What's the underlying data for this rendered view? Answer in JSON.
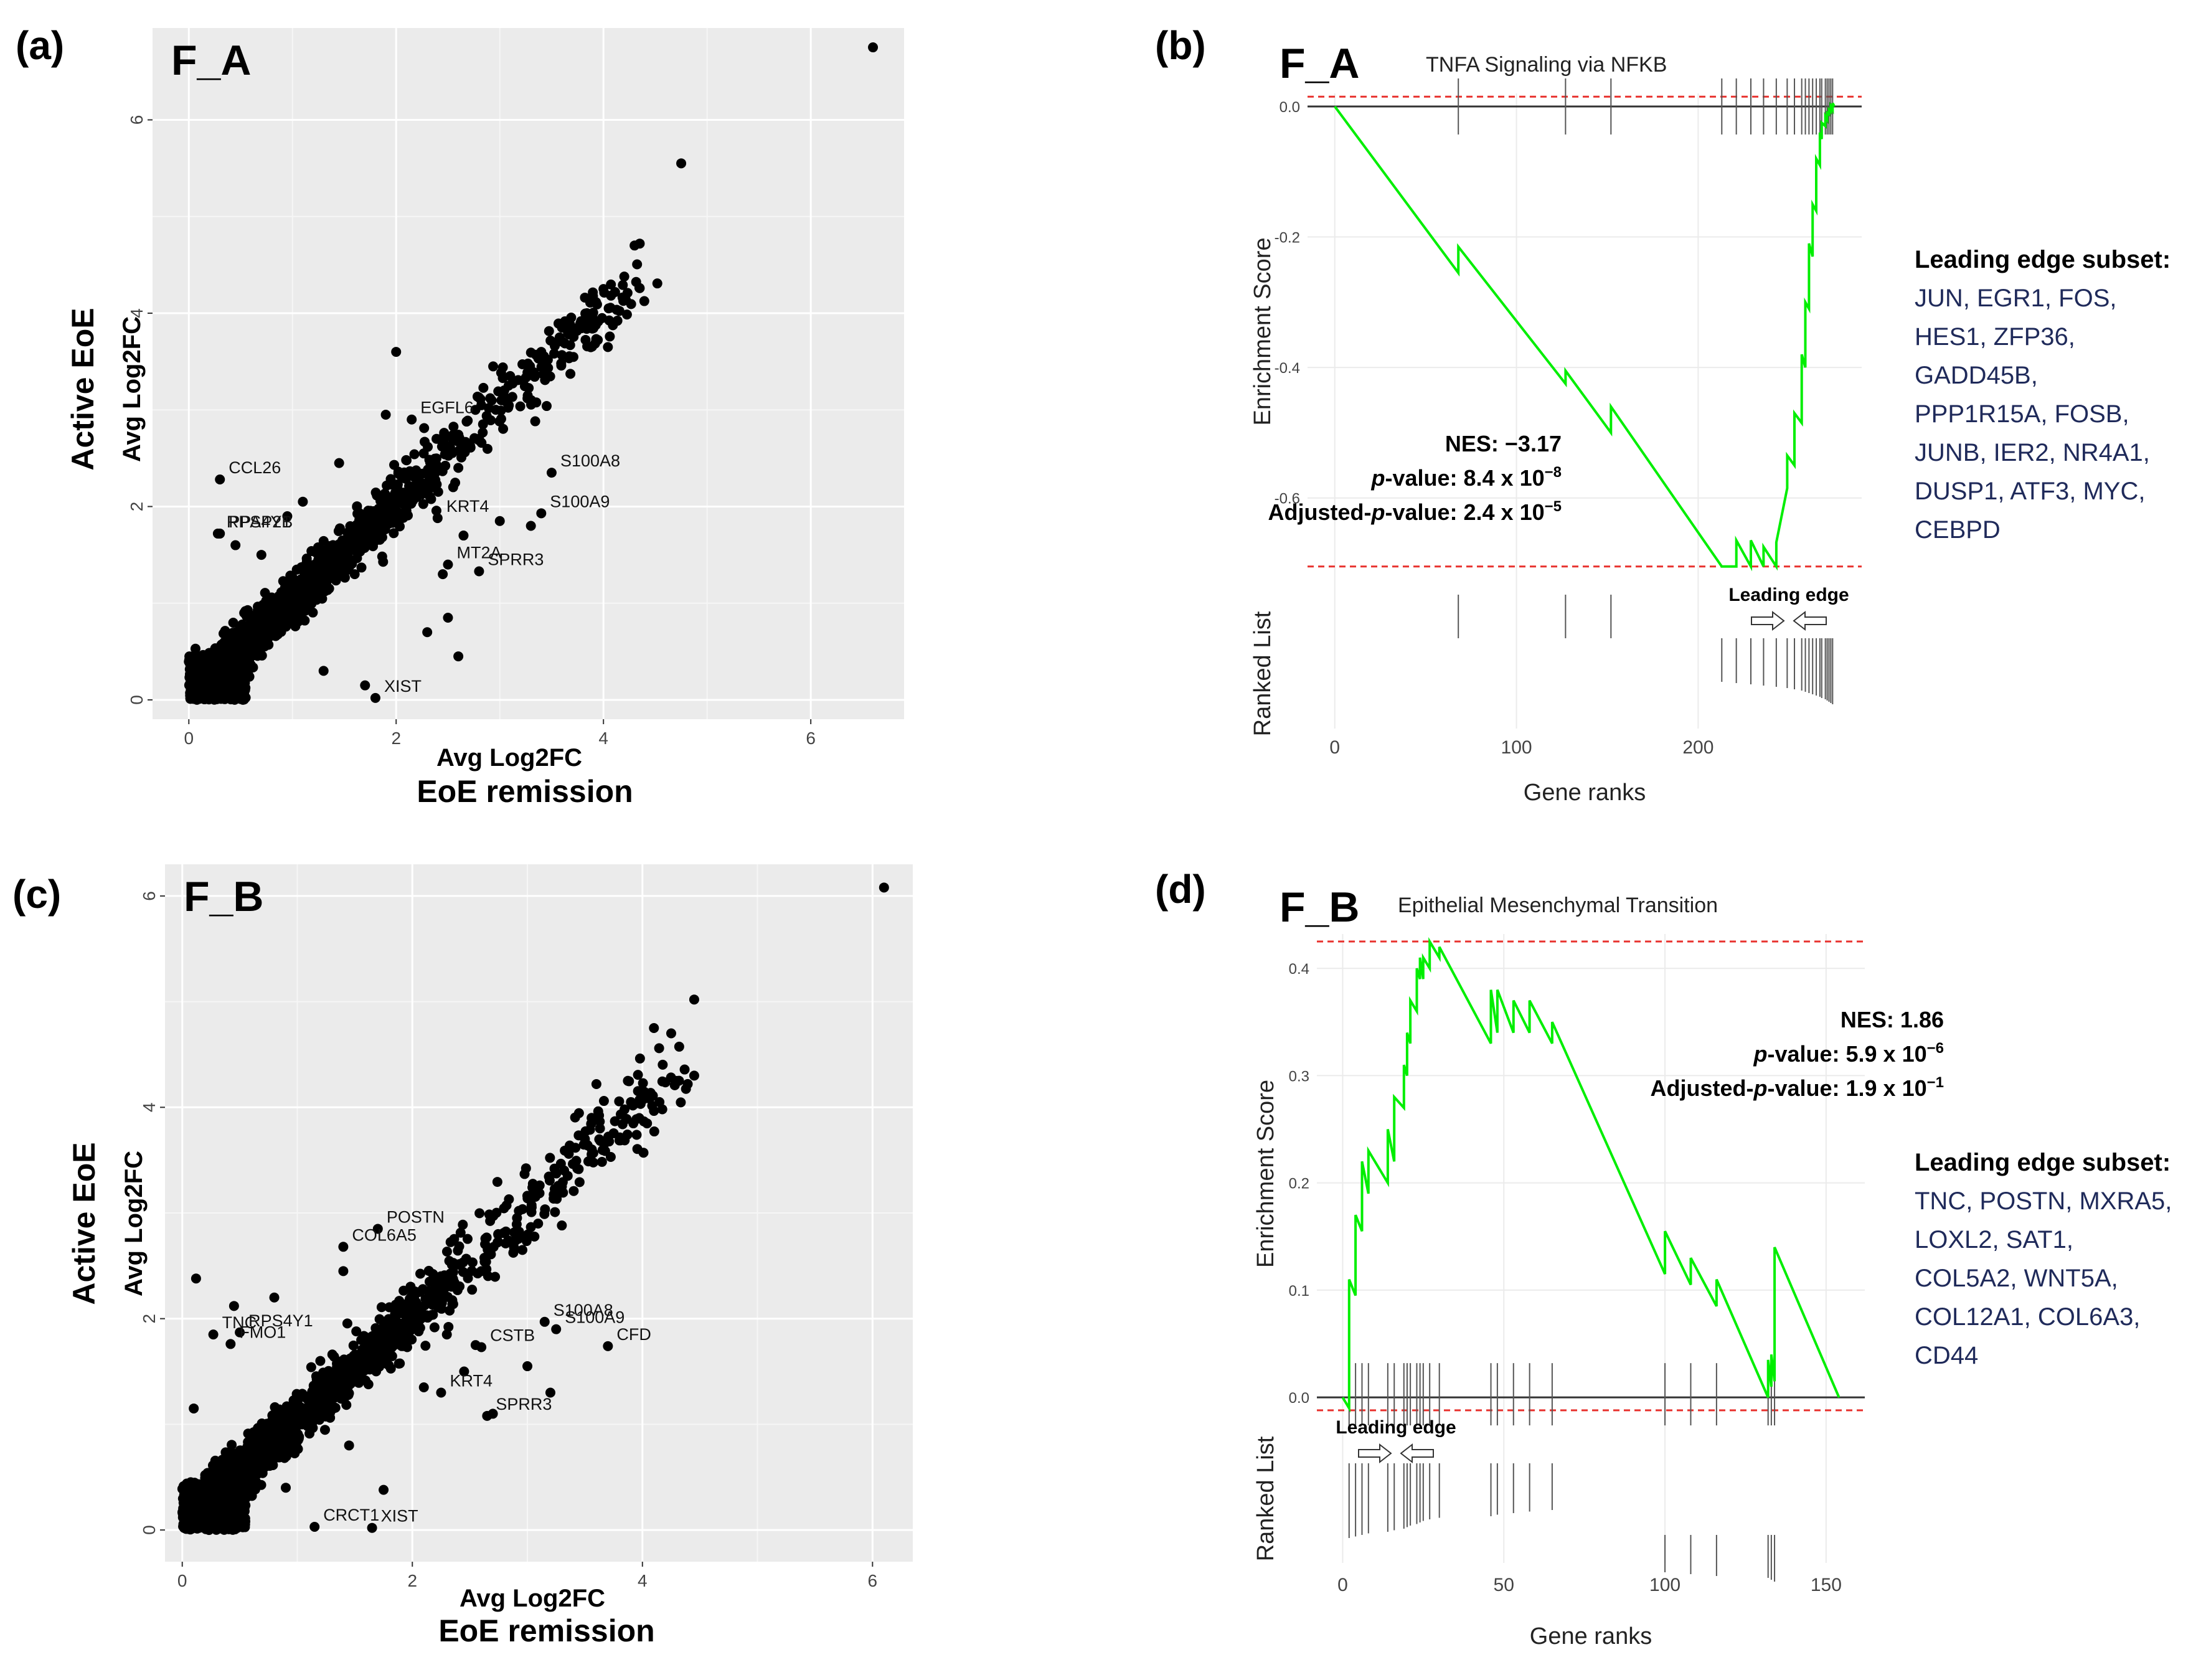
{
  "chart_data": [
    {
      "panel": "(a)",
      "tag": "F_A",
      "type": "scatter",
      "xlabel_top": "Avg Log2FC",
      "xlabel_bottom": "EoE remission",
      "ylabel_top": "Active EoE",
      "ylabel_bottom": "Avg Log2FC",
      "xlim": [
        -0.35,
        6.9
      ],
      "ylim": [
        -0.2,
        6.95
      ],
      "xticks": [
        0,
        2,
        4,
        6
      ],
      "yticks": [
        0,
        2,
        4,
        6
      ],
      "points": [
        [
          6.6,
          6.75
        ],
        [
          4.75,
          5.55
        ],
        [
          4.35,
          4.72
        ],
        [
          4.3,
          4.7
        ],
        [
          4.0,
          4.25
        ],
        [
          4.05,
          4.05
        ],
        [
          3.6,
          3.85
        ],
        [
          3.4,
          3.6
        ],
        [
          3.1,
          3.35
        ],
        [
          2.0,
          3.6
        ],
        [
          1.9,
          2.95
        ],
        [
          1.45,
          2.45
        ],
        [
          2.6,
          2.4
        ],
        [
          2.8,
          2.7
        ],
        [
          2.55,
          2.2
        ],
        [
          2.2,
          2.1
        ],
        [
          3.3,
          1.8
        ],
        [
          3.0,
          1.85
        ],
        [
          2.65,
          1.7
        ],
        [
          2.45,
          1.3
        ],
        [
          2.3,
          0.7
        ],
        [
          2.5,
          0.85
        ],
        [
          2.6,
          0.45
        ],
        [
          1.7,
          0.15
        ],
        [
          0.45,
          1.6
        ],
        [
          0.7,
          1.5
        ],
        [
          0.95,
          1.9
        ],
        [
          1.1,
          2.05
        ],
        [
          1.6,
          1.3
        ],
        [
          1.3,
          0.3
        ]
      ],
      "labeled_points": [
        {
          "name": "CCL26",
          "x": 0.3,
          "y": 2.28
        },
        {
          "name": "RPS4Y1",
          "x": 0.28,
          "y": 1.72
        },
        {
          "name": "PPAP2B",
          "x": 0.3,
          "y": 1.72
        },
        {
          "name": "EGFL6",
          "x": 2.15,
          "y": 2.9
        },
        {
          "name": "S100A8",
          "x": 3.5,
          "y": 2.35
        },
        {
          "name": "S100A9",
          "x": 3.4,
          "y": 1.93
        },
        {
          "name": "KRT4",
          "x": 2.4,
          "y": 1.88
        },
        {
          "name": "MT2A",
          "x": 2.5,
          "y": 1.4
        },
        {
          "name": "SPRR3",
          "x": 2.8,
          "y": 1.33
        },
        {
          "name": "XIST",
          "x": 1.8,
          "y": 0.02
        }
      ]
    },
    {
      "panel": "(b)",
      "tag": "F_A",
      "type": "line",
      "title": "TNFA Signaling via NFKB",
      "xlabel": "Gene ranks",
      "ylabel": "Enrichment Score",
      "ranked_list_label": "Ranked List",
      "xlim": [
        -15,
        290
      ],
      "ylim": [
        -0.71,
        0.02
      ],
      "xticks": [
        0,
        100,
        200
      ],
      "yticks": [
        0.0,
        -0.2,
        -0.4,
        -0.6
      ],
      "dashed_lines": [
        0.015,
        -0.705
      ],
      "x": [
        0,
        68,
        68,
        127,
        127,
        152,
        152,
        213,
        221,
        221,
        229,
        229,
        236,
        236,
        243,
        243,
        249,
        249,
        253,
        253,
        257,
        257,
        259,
        259,
        261,
        261,
        263,
        263,
        265,
        265,
        267,
        267,
        268,
        268,
        270,
        270,
        271,
        271,
        272,
        272,
        273,
        273,
        274,
        274,
        275
      ],
      "y": [
        0.0,
        -0.255,
        -0.215,
        -0.425,
        -0.405,
        -0.5,
        -0.46,
        -0.705,
        -0.705,
        -0.665,
        -0.705,
        -0.665,
        -0.705,
        -0.675,
        -0.705,
        -0.668,
        -0.585,
        -0.535,
        -0.55,
        -0.47,
        -0.485,
        -0.38,
        -0.4,
        -0.3,
        -0.31,
        -0.21,
        -0.23,
        -0.15,
        -0.16,
        -0.08,
        -0.09,
        -0.04,
        -0.05,
        -0.025,
        -0.03,
        -0.015,
        -0.02,
        -0.01,
        -0.012,
        -0.005,
        -0.008,
        0.0,
        -0.005,
        0.005,
        0.0
      ],
      "hits_upper": [
        68,
        127,
        152,
        213,
        221,
        229,
        236,
        243,
        249,
        253,
        257,
        259,
        261,
        263,
        265,
        267,
        268,
        270,
        271,
        272,
        273,
        274
      ],
      "hits_lower": [
        68,
        127,
        152
      ],
      "hits_lower2": [
        213,
        221,
        229,
        236,
        243,
        249,
        253,
        257,
        259,
        261,
        263,
        265,
        267,
        268,
        270,
        271,
        272,
        273,
        274
      ],
      "leading_edge_label": "Leading edge",
      "stats": {
        "nes_label": "NES:",
        "nes_value": "−3.17",
        "p_label": "p",
        "p_suffix": "-value: 8.4 x 10",
        "p_exp": "−8",
        "adj_prefix": "Adjusted-",
        "adj_p": "p",
        "adj_suffix": "-value: 2.4 x 10",
        "adj_exp": "−5"
      },
      "leading_edge_subset": {
        "heading": "Leading edge subset:",
        "lines": [
          "JUN, EGR1, FOS,",
          "HES1, ZFP36,",
          "GADD45B,",
          "PPP1R15A, FOSB,",
          "JUNB, IER2, NR4A1,",
          "DUSP1, ATF3, MYC,",
          "CEBPD"
        ]
      }
    },
    {
      "panel": "(c)",
      "tag": "F_B",
      "type": "scatter",
      "xlabel_top": "Avg Log2FC",
      "xlabel_bottom": "EoE remission",
      "ylabel_top": "Active EoE",
      "ylabel_bottom": "Avg Log2FC",
      "xlim": [
        -0.15,
        6.35
      ],
      "ylim": [
        -0.3,
        6.3
      ],
      "xticks": [
        0,
        2,
        4,
        6
      ],
      "yticks": [
        0,
        2,
        4,
        6
      ],
      "points": [
        [
          6.1,
          6.08
        ],
        [
          4.45,
          5.02
        ],
        [
          4.1,
          4.75
        ],
        [
          4.25,
          4.7
        ],
        [
          4.45,
          4.3
        ],
        [
          4.3,
          4.25
        ],
        [
          3.6,
          4.22
        ],
        [
          3.9,
          4.05
        ],
        [
          3.5,
          3.7
        ],
        [
          3.3,
          3.25
        ],
        [
          2.9,
          2.75
        ],
        [
          2.6,
          2.45
        ],
        [
          0.12,
          2.38
        ],
        [
          0.45,
          2.12
        ],
        [
          0.8,
          2.2
        ],
        [
          1.4,
          2.45
        ],
        [
          2.15,
          2.35
        ],
        [
          2.0,
          2.15
        ],
        [
          2.3,
          1.85
        ],
        [
          2.55,
          1.75
        ],
        [
          2.1,
          1.35
        ],
        [
          2.45,
          1.5
        ],
        [
          3.0,
          1.55
        ],
        [
          1.45,
          0.8
        ],
        [
          1.75,
          0.38
        ],
        [
          0.9,
          0.4
        ],
        [
          0.1,
          1.15
        ],
        [
          1.2,
          1.6
        ],
        [
          2.7,
          1.1
        ],
        [
          3.2,
          1.3
        ]
      ],
      "labeled_points": [
        {
          "name": "POSTN",
          "x": 1.7,
          "y": 2.85
        },
        {
          "name": "COL6A5",
          "x": 1.4,
          "y": 2.68
        },
        {
          "name": "TNC",
          "x": 0.27,
          "y": 1.85
        },
        {
          "name": "RPS4Y1",
          "x": 0.5,
          "y": 1.87
        },
        {
          "name": "FMO1",
          "x": 0.42,
          "y": 1.76
        },
        {
          "name": "S100A8",
          "x": 3.15,
          "y": 1.97
        },
        {
          "name": "S100A9",
          "x": 3.25,
          "y": 1.9
        },
        {
          "name": "CFD",
          "x": 3.7,
          "y": 1.74
        },
        {
          "name": "CSTB",
          "x": 2.6,
          "y": 1.73
        },
        {
          "name": "KRT4",
          "x": 2.25,
          "y": 1.3
        },
        {
          "name": "SPRR3",
          "x": 2.65,
          "y": 1.08
        },
        {
          "name": "CRCT1",
          "x": 1.15,
          "y": 0.03
        },
        {
          "name": "XIST",
          "x": 1.65,
          "y": 0.02
        }
      ]
    },
    {
      "panel": "(d)",
      "tag": "F_B",
      "type": "line",
      "title": "Epithelial Mesenchymal Transition",
      "xlabel": "Gene ranks",
      "ylabel": "Enrichment Score",
      "ranked_list_label": "Ranked List",
      "xlim": [
        -8,
        162
      ],
      "ylim": [
        -0.015,
        0.432
      ],
      "xticks": [
        0,
        50,
        100,
        150
      ],
      "yticks": [
        0.0,
        0.1,
        0.2,
        0.3,
        0.4
      ],
      "dashed_lines": [
        0.425,
        -0.012
      ],
      "x": [
        0,
        2,
        2,
        4,
        4,
        6,
        6,
        8,
        8,
        14,
        14,
        16,
        16,
        19,
        19,
        20,
        20,
        21,
        21,
        23,
        23,
        24,
        24,
        25,
        25,
        27,
        27,
        30,
        30,
        46,
        46,
        48,
        48,
        53,
        53,
        58,
        58,
        65,
        65,
        100,
        100,
        108,
        108,
        116,
        116,
        132,
        132,
        133,
        133,
        134,
        134,
        154
      ],
      "y": [
        0.0,
        -0.01,
        0.11,
        0.095,
        0.17,
        0.155,
        0.22,
        0.19,
        0.23,
        0.2,
        0.25,
        0.22,
        0.28,
        0.27,
        0.31,
        0.3,
        0.34,
        0.33,
        0.37,
        0.36,
        0.4,
        0.39,
        0.41,
        0.39,
        0.41,
        0.4,
        0.425,
        0.41,
        0.42,
        0.33,
        0.38,
        0.34,
        0.38,
        0.34,
        0.37,
        0.34,
        0.37,
        0.33,
        0.35,
        0.115,
        0.155,
        0.105,
        0.13,
        0.085,
        0.11,
        0.0,
        0.035,
        0.01,
        0.04,
        0.015,
        0.14,
        0.0
      ],
      "hits_upper": [
        2,
        4,
        6,
        8,
        14,
        16,
        19,
        20,
        21,
        23,
        24,
        25,
        27,
        30,
        46,
        48,
        53,
        58,
        65,
        100,
        108,
        116,
        132,
        133,
        134
      ],
      "hits_lower": [
        2,
        4,
        6,
        8,
        14,
        16,
        19,
        20,
        21,
        23,
        24,
        25,
        27,
        30,
        46,
        48,
        53,
        58,
        65
      ],
      "hits_lower2": [
        100,
        108,
        116,
        132,
        133,
        134
      ],
      "leading_edge_label": "Leading edge",
      "stats": {
        "nes_label": "NES:",
        "nes_value": "1.86",
        "p_label": "p",
        "p_suffix": "-value: 5.9 x 10",
        "p_exp": "−6",
        "adj_prefix": "Adjusted-",
        "adj_p": "p",
        "adj_suffix": "-value: 1.9 x 10",
        "adj_exp": "−1"
      },
      "leading_edge_subset": {
        "heading": "Leading edge subset:",
        "lines": [
          "TNC, POSTN, MXRA5,",
          "LOXL2, SAT1,",
          "COL5A2, WNT5A,",
          "COL12A1, COL6A3,",
          "CD44"
        ]
      }
    }
  ],
  "colors": {
    "panel_bg": "#ebebeb",
    "grid": "#ffffff",
    "point": "#000000",
    "es_line": "#00ee00",
    "dash": "#e8322e",
    "text_dark_blue": "#1f2a5a"
  }
}
